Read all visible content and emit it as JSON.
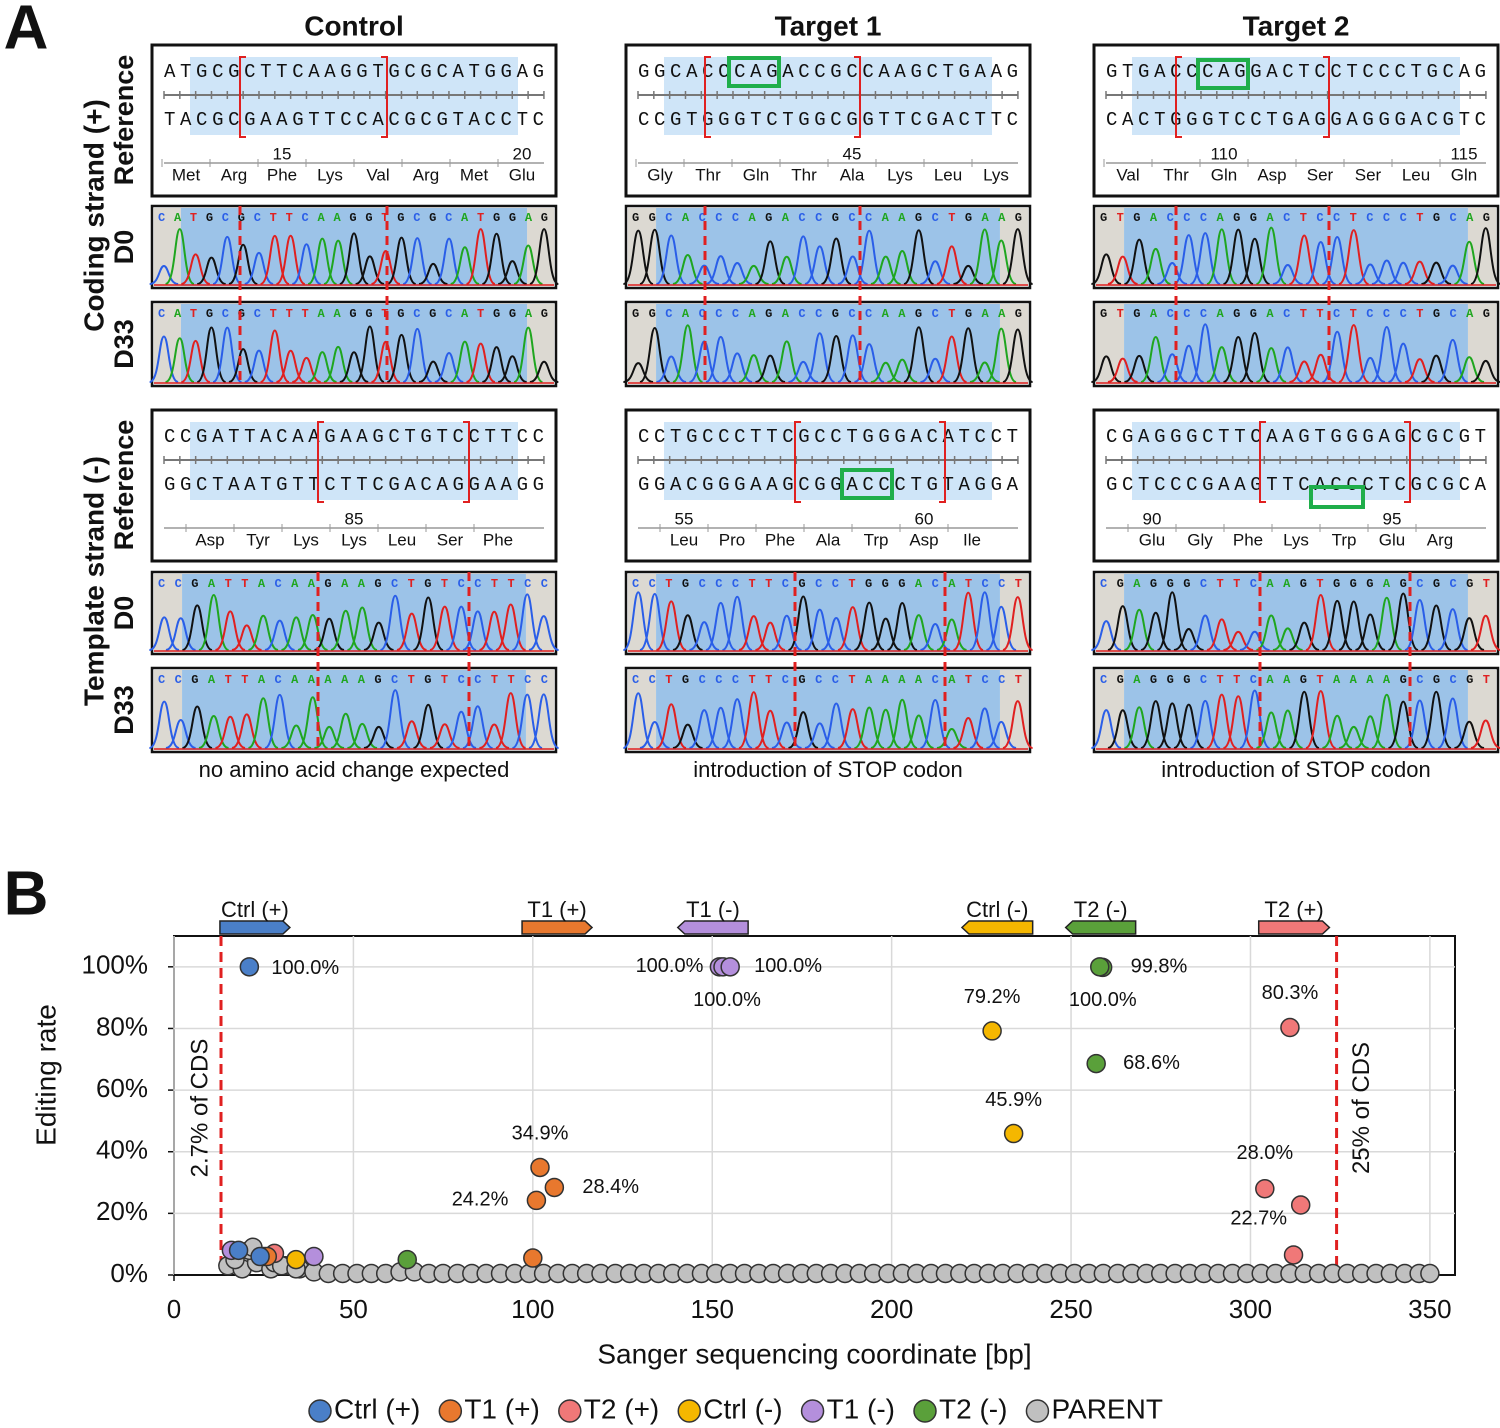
{
  "panel_a": {
    "label": "A",
    "strands": [
      "Coding strand (+)",
      "Template strand (-)"
    ],
    "tracks": [
      "Reference",
      "D0",
      "D33"
    ],
    "columns": [
      {
        "title": "Control",
        "caption": "no amino acid change expected",
        "coding": {
          "top": "ATGCGCTTCAAGGTGCGCATGGAG",
          "bottom": "TACGCGAAGTTCCACGCGTACCTC",
          "numbers": [
            null,
            null,
            "15",
            null,
            null,
            null,
            null,
            "20"
          ],
          "aa": [
            "Met",
            "Arg",
            "Phe",
            "Lys",
            "Val",
            "Arg",
            "Met",
            "Glu"
          ],
          "d0": "CATGCGCTTCAAGGTGCGCATGGAG",
          "d33": "CATGCGCTTTAAGGTGCGCATGGAG"
        },
        "template": {
          "top": "CCGATTACAAGAAGCTGTCCTTCC",
          "bottom": "GGCTAATGTTCTTCGACAGGAAGG",
          "numbers": [
            null,
            null,
            null,
            "85",
            null,
            null,
            null
          ],
          "aa": [
            "Asp",
            "Tyr",
            "Lys",
            "Lys",
            "Leu",
            "Ser",
            "Phe"
          ],
          "d0": "CCGATTACAAGAAGCTGTCCTTCC",
          "d33": "CCGATTACAAAAAGCTGTCCTTCC"
        }
      },
      {
        "title": "Target 1",
        "caption": "introduction of STOP codon",
        "coding": {
          "top": "GGCACCCAGACCGCCAAGCTGAAG",
          "bottom": "CCGTGGGTCTGGCGGTTCGACTTC",
          "numbers": [
            null,
            null,
            null,
            null,
            "45",
            null,
            null,
            null
          ],
          "aa": [
            "Gly",
            "Thr",
            "Gln",
            "Thr",
            "Ala",
            "Lys",
            "Leu",
            "Lys"
          ],
          "d0": "GGCACCCAGACCGCCAAGCTGAAG",
          "d33": "GGCACCCAGACCGCCAAGCTGAAG"
        },
        "template": {
          "top": "CCTGCCCTTCGCCTGGGACATCCT",
          "bottom": "GGACGGGAAGCGGACCCTGTAGGA",
          "numbers": [
            "55",
            null,
            null,
            null,
            null,
            "60",
            null
          ],
          "aa": [
            "Leu",
            "Pro",
            "Phe",
            "Ala",
            "Trp",
            "Asp",
            "Ile"
          ],
          "d0": "CCTGCCCTTCGCCTGGGACATCCT",
          "d33": "CCTGCCCTTCGCCTAAAACATCCT"
        }
      },
      {
        "title": "Target 2",
        "caption": "introduction of STOP codon",
        "coding": {
          "top": "GTGACCCAGGACTCCTCCCTGCAG",
          "bottom": "CACTGGGTCCTGAGGAGGGACGTC",
          "numbers": [
            null,
            null,
            "110",
            null,
            null,
            null,
            null,
            "115"
          ],
          "aa": [
            "Val",
            "Thr",
            "Gln",
            "Asp",
            "Ser",
            "Ser",
            "Leu",
            "Gln"
          ],
          "d0": "GTGACCCAGGACTCCTCCCTGCAG",
          "d33": "GTGACCCAGGACTTCTCCCTGCAG"
        },
        "template": {
          "top": "CGAGGGCTTCAAGTGGGAGCGCGT",
          "bottom": "GCTCCCGAAGTTCACCCTCGCGCA",
          "numbers": [
            "90",
            null,
            null,
            null,
            null,
            "95",
            null
          ],
          "aa": [
            "Glu",
            "Gly",
            "Phe",
            "Lys",
            "Trp",
            "Glu",
            "Arg"
          ],
          "d0": "CGAGGGCTTCAAGTGGGAGCGCGT",
          "d33": "CGAGGGCTTCAAGTAAAAGCGCGT"
        }
      }
    ]
  },
  "chart_data": {
    "type": "scatter",
    "panel_label": "B",
    "x_label": "Sanger sequencing coordinate [bp]",
    "y_label": "Editing rate",
    "xlim": [
      0,
      357
    ],
    "ylim": [
      0,
      110
    ],
    "xticks": [
      0,
      50,
      100,
      150,
      200,
      250,
      300,
      350
    ],
    "yticks": [
      {
        "value": 0,
        "label": "0%"
      },
      {
        "value": 20,
        "label": "20%"
      },
      {
        "value": 40,
        "label": "40%"
      },
      {
        "value": 60,
        "label": "60%"
      },
      {
        "value": 80,
        "label": "80%"
      },
      {
        "value": 100,
        "label": "100%"
      }
    ],
    "grid": true,
    "legend": "bottom",
    "cds_markers": [
      {
        "x": 13.1,
        "label": "2.7% of CDS"
      },
      {
        "x": 324,
        "label": "25% of CDS"
      }
    ],
    "guides": [
      {
        "label": "Ctrl (+)",
        "start": 12.8,
        "end": 32.3,
        "direction": "right",
        "color": "#4a7fc8"
      },
      {
        "label": "T1 (+)",
        "start": 97,
        "end": 116.5,
        "direction": "right",
        "color": "#e8782e"
      },
      {
        "label": "T1 (-)",
        "start": 140.4,
        "end": 160,
        "direction": "left",
        "color": "#b48fdc"
      },
      {
        "label": "Ctrl (-)",
        "start": 219.6,
        "end": 239.3,
        "direction": "left",
        "color": "#f5b700"
      },
      {
        "label": "T2 (-)",
        "start": 248.5,
        "end": 268,
        "direction": "left",
        "color": "#5aa03a"
      },
      {
        "label": "T2 (+)",
        "start": 302.3,
        "end": 322,
        "direction": "right",
        "color": "#f07878"
      }
    ],
    "series": [
      {
        "name": "Ctrl (+)",
        "color": "#4a7fc8",
        "x": [
          21,
          18,
          24
        ],
        "values": [
          100.0,
          8,
          6
        ],
        "value_labels": [
          "100.0%",
          null,
          null
        ]
      },
      {
        "name": "T1 (+)",
        "color": "#e8782e",
        "x": [
          102,
          101,
          106,
          100,
          26
        ],
        "values": [
          34.9,
          24.2,
          28.4,
          5.5,
          6
        ],
        "value_labels": [
          "34.9%",
          "24.2%",
          "28.4%",
          null,
          null
        ]
      },
      {
        "name": "T2 (+)",
        "color": "#f07878",
        "x": [
          311,
          304,
          314,
          312,
          28
        ],
        "values": [
          80.3,
          28.0,
          22.7,
          6.5,
          7
        ],
        "value_labels": [
          "80.3%",
          "28.0%",
          "22.7%",
          null,
          null
        ]
      },
      {
        "name": "Ctrl (-)",
        "color": "#f5b700",
        "x": [
          228,
          234,
          34
        ],
        "values": [
          79.2,
          45.9,
          5
        ],
        "value_labels": [
          "79.2%",
          "45.9%",
          null
        ]
      },
      {
        "name": "T1 (-)",
        "color": "#b48fdc",
        "x": [
          152,
          153,
          155,
          16,
          39
        ],
        "values": [
          100.0,
          100.0,
          100.0,
          8,
          6
        ],
        "value_labels": [
          "100.0%",
          "100.0%",
          "100.0%",
          null,
          null
        ]
      },
      {
        "name": "T2 (-)",
        "color": "#5aa03a",
        "x": [
          258.8,
          258,
          257,
          65
        ],
        "values": [
          99.8,
          100.0,
          68.6,
          5
        ],
        "value_labels": [
          "99.8%",
          "100.0%",
          "68.6%",
          null
        ]
      },
      {
        "name": "PARENT",
        "color": "#c0c0c0",
        "x": [
          15,
          19,
          23,
          27,
          31,
          35,
          39,
          43,
          47,
          51,
          55,
          59,
          63,
          67,
          71,
          75,
          79,
          83,
          87,
          91,
          95,
          99,
          103,
          107,
          111,
          115,
          119,
          123,
          127,
          131,
          135,
          139,
          143,
          147,
          151,
          155,
          159,
          163,
          167,
          171,
          175,
          179,
          183,
          187,
          191,
          195,
          199,
          203,
          207,
          211,
          215,
          219,
          223,
          227,
          231,
          235,
          239,
          243,
          247,
          251,
          255,
          259,
          263,
          267,
          271,
          275,
          279,
          283,
          287,
          291,
          295,
          299,
          303,
          307,
          311,
          315,
          319,
          323,
          327,
          331,
          335,
          339,
          343,
          347,
          350,
          17,
          21,
          22,
          25,
          28,
          30,
          34
        ],
        "values": [
          3,
          2,
          4,
          2,
          3,
          2,
          1,
          0.5,
          0.5,
          0.5,
          0.5,
          0.5,
          1,
          1,
          0.5,
          0.5,
          0.5,
          0.5,
          0.5,
          0.5,
          0.5,
          0.5,
          0.5,
          0.5,
          0.5,
          0.5,
          0.5,
          0.5,
          0.5,
          0.5,
          0.5,
          0.5,
          0.5,
          0.5,
          0.5,
          0.5,
          0.5,
          0.5,
          0.5,
          0.5,
          0.5,
          0.5,
          0.5,
          0.5,
          0.5,
          0.5,
          0.5,
          0.5,
          0.5,
          0.5,
          0.5,
          0.5,
          0.5,
          0.5,
          0.5,
          0.5,
          0.5,
          0.5,
          0.5,
          0.5,
          0.5,
          0.5,
          0.5,
          0.5,
          0.5,
          0.5,
          0.5,
          0.5,
          0.5,
          0.5,
          0.5,
          0.5,
          0.5,
          0.5,
          0.5,
          0.5,
          0.5,
          0.5,
          0.5,
          0.5,
          0.5,
          0.5,
          0.5,
          0.5,
          0.5,
          5,
          8,
          9,
          6,
          4,
          3,
          2
        ]
      }
    ]
  }
}
